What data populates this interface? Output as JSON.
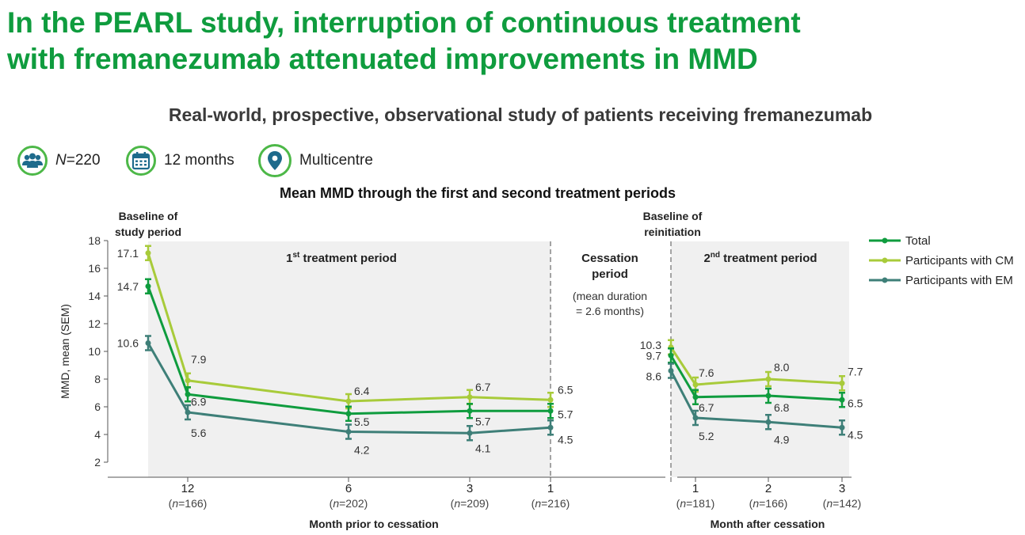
{
  "title_line1": "In the PEARL study, interruption of continuous treatment",
  "title_line2": "with fremanezumab attenuated improvements in MMD",
  "subtitle": "Real-world, prospective, observational study of patients receiving fremanezumab",
  "info": {
    "n_italic": "N",
    "n_value": "=220",
    "duration": "12 months",
    "sites": "Multicentre"
  },
  "icons": [
    "people-icon",
    "calendar-icon",
    "location-pin-icon"
  ],
  "colors": {
    "title": "#0f9c3e",
    "total": "#0f9c3e",
    "cm": "#a8cb3a",
    "em": "#3e7f78",
    "panel": "#f0f0f0",
    "icon_ring": "#4db848",
    "icon_fill": "#1e6b8c"
  },
  "chart_data": {
    "type": "line",
    "title": "Mean MMD through the first and second treatment periods",
    "ylabel": "MMD, mean (SEM)",
    "ylim": [
      2,
      18
    ],
    "yticks": [
      2,
      4,
      6,
      8,
      10,
      12,
      14,
      16,
      18
    ],
    "grid": false,
    "legend_position": "top-right",
    "panels": [
      {
        "name": "first",
        "region_label": "1st treatment period",
        "region_label_main": "1",
        "region_label_sup": "st",
        "region_label_rest": " treatment period",
        "xlabel": "Month prior to cessation",
        "x": [
          "Baseline of study period",
          "12",
          "6",
          "3",
          "1"
        ],
        "x_n": [
          "",
          "166",
          "202",
          "209",
          "216"
        ],
        "baseline_label": [
          "Baseline of",
          "study period"
        ],
        "series": [
          {
            "name": "Total",
            "values": [
              14.7,
              6.9,
              5.5,
              5.7,
              5.7
            ],
            "labels": [
              "14.7",
              "6.9",
              "5.5",
              "5.7",
              "5.7"
            ]
          },
          {
            "name": "Participants with CM",
            "values": [
              17.1,
              7.9,
              6.4,
              6.7,
              6.5
            ],
            "labels": [
              "17.1",
              "7.9",
              "6.4",
              "6.7",
              "6.5"
            ]
          },
          {
            "name": "Participants with EM",
            "values": [
              10.6,
              5.6,
              4.2,
              4.1,
              4.5
            ],
            "labels": [
              "10.6",
              "5.6",
              "4.2",
              "4.1",
              "4.5"
            ]
          }
        ]
      },
      {
        "name": "second",
        "region_label": "2nd treatment period",
        "region_label_main": "2",
        "region_label_sup": "nd",
        "region_label_rest": " treatment period",
        "xlabel": "Month after cessation",
        "x": [
          "Baseline of reinitiation",
          "1",
          "2",
          "3"
        ],
        "x_n": [
          "",
          "181",
          "166",
          "142"
        ],
        "baseline_label": [
          "Baseline of",
          "reinitiation"
        ],
        "series": [
          {
            "name": "Total",
            "values": [
              9.7,
              6.7,
              6.8,
              6.5
            ],
            "labels": [
              "9.7",
              "6.7",
              "6.8",
              "6.5"
            ]
          },
          {
            "name": "Participants with CM",
            "values": [
              10.3,
              7.6,
              8.0,
              7.7
            ],
            "labels": [
              "10.3",
              "7.6",
              "8.0",
              "7.7"
            ]
          },
          {
            "name": "Participants with EM",
            "values": [
              8.6,
              5.2,
              4.9,
              4.5
            ],
            "labels": [
              "8.6",
              "5.2",
              "4.9",
              "4.5"
            ]
          }
        ]
      }
    ],
    "cessation": {
      "title": [
        "Cessation",
        "period"
      ],
      "note": [
        "(mean duration",
        "= 2.6 months)"
      ]
    },
    "n_prefix": "n",
    "legend": [
      "Total",
      "Participants with CM",
      "Participants with EM"
    ]
  }
}
